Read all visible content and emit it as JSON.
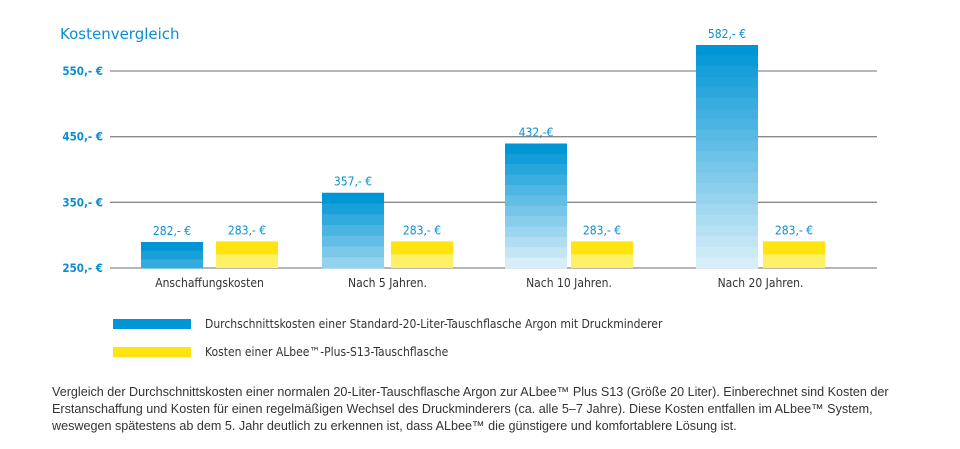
{
  "chart_data": {
    "type": "bar",
    "title": "Kostenvergleich",
    "ylim": [
      250,
      600
    ],
    "yticks": [
      250,
      350,
      450,
      550
    ],
    "ytick_labels": [
      "250,- €",
      "350,- €",
      "450,- €",
      "550,- €"
    ],
    "grid": true,
    "legend_placement": "bottom",
    "categories": [
      "Anschaffungskosten",
      "Nach 5 Jahren.",
      "Nach 10 Jahren.",
      "Nach 20 Jahren."
    ],
    "series": [
      {
        "name": "Durchschnittskosten einer Standard-20-Liter-Tauschflasche Argon mit Druckminderer",
        "color": "#0096d6",
        "values": [
          282,
          357,
          432,
          582
        ],
        "labels": [
          "282,- €",
          "357,- €",
          "432,-€",
          "582,- €"
        ]
      },
      {
        "name": "Kosten einer ALbee™-Plus-S13-Tauschflasche",
        "color": "#ffe410",
        "values": [
          283,
          283,
          283,
          283
        ],
        "labels": [
          "283,- €",
          "283,- €",
          "283,- €",
          "283,- €"
        ]
      }
    ]
  },
  "description": "Vergleich der Durchschnittskosten einer normalen 20-Liter-Tauschflasche Argon zur ALbee™ Plus S13 (Größe 20 Liter). Einberechnet sind Kosten der Erstanschaffung und Kosten für einen regelmäßigen Wechsel des Druckminderers (ca. alle 5–7 Jahre). Diese Kosten entfallen im ALbee™ System, weswegen spätestens ab dem 5. Jahr deutlich zu erkennen ist, dass ALbee™ die günstigere und komfortablere Lösung ist."
}
